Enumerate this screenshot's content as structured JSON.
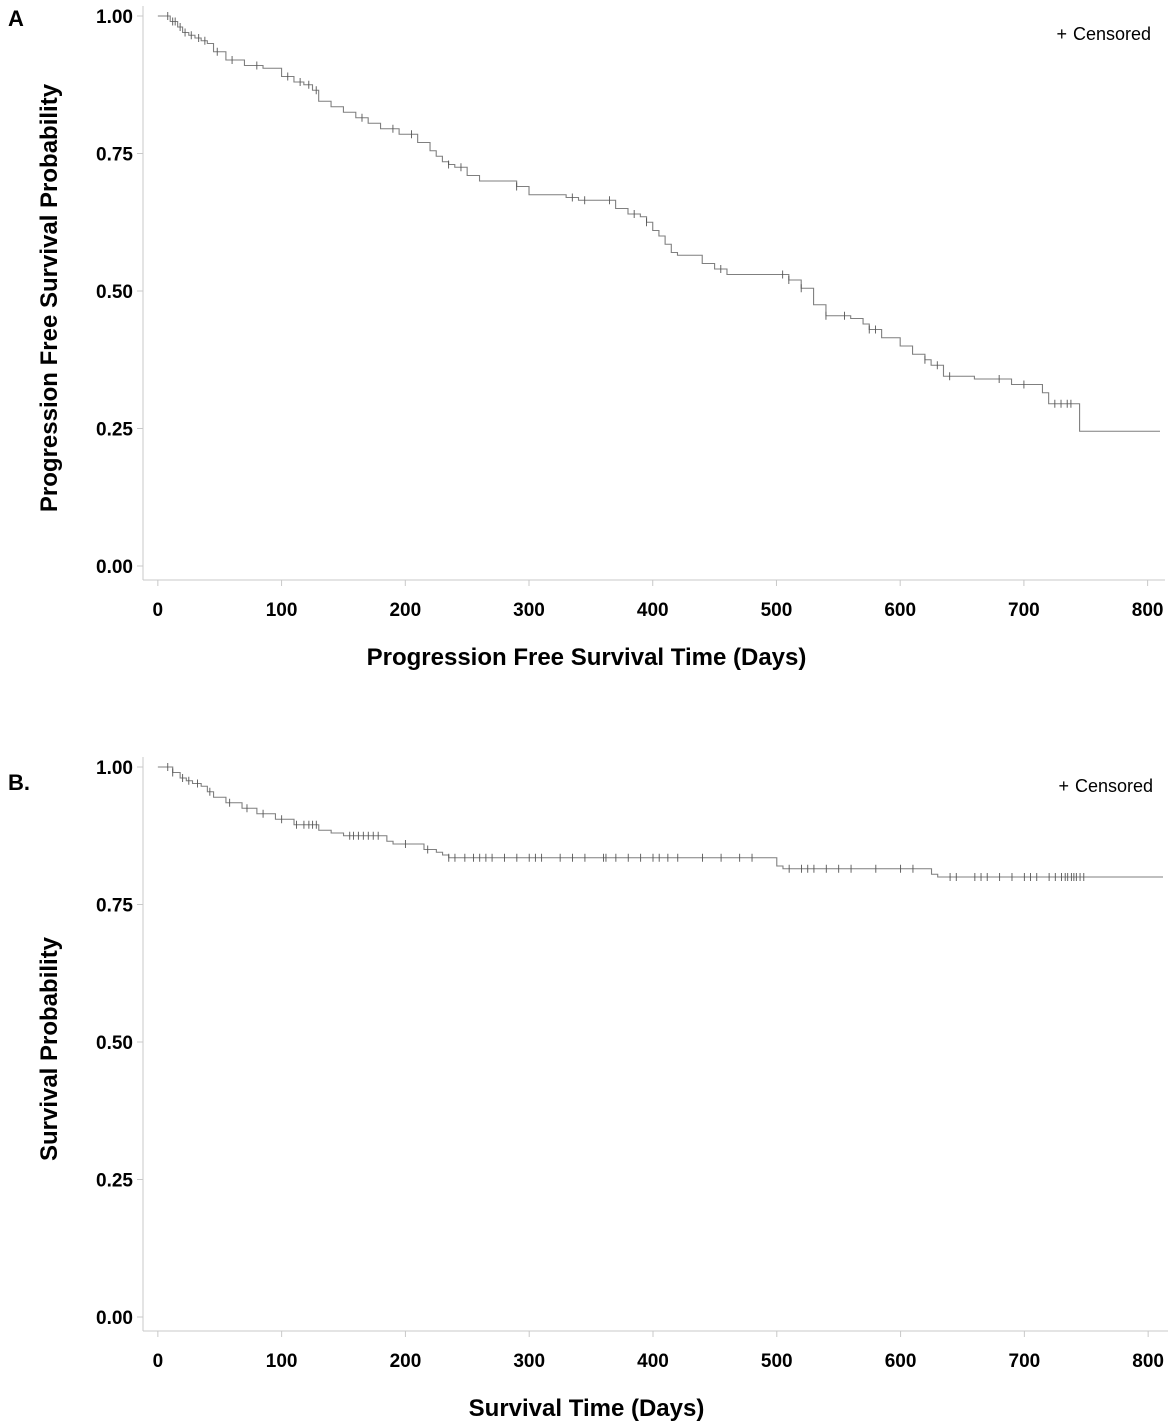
{
  "chart_data": [
    {
      "type": "line",
      "panel_label": "A",
      "xlabel": "Progression Free Survival Time (Days)",
      "ylabel": "Progression Free Survival Probability",
      "legend": "+ Censored",
      "legend_symbol": "+",
      "legend_text": "Censored",
      "legend_position": "top-right",
      "xlim": [
        -12,
        810
      ],
      "ylim": [
        0,
        1
      ],
      "x_ticks": [
        "0",
        "100",
        "200",
        "300",
        "400",
        "500",
        "600",
        "700",
        "800"
      ],
      "y_ticks": [
        "0.00",
        "0.25",
        "0.50",
        "0.75",
        "1.00"
      ],
      "grid": false,
      "line_color": "#7f7f7f",
      "step_x": [
        0,
        10,
        16,
        20,
        25,
        30,
        35,
        40,
        45,
        55,
        70,
        85,
        100,
        110,
        118,
        125,
        130,
        140,
        150,
        160,
        170,
        180,
        195,
        210,
        220,
        225,
        230,
        235,
        240,
        250,
        260,
        290,
        300,
        330,
        340,
        370,
        380,
        390,
        395,
        400,
        405,
        410,
        415,
        420,
        440,
        450,
        460,
        510,
        520,
        530,
        540,
        560,
        570,
        575,
        585,
        600,
        610,
        620,
        625,
        635,
        660,
        690,
        715,
        720,
        745,
        810
      ],
      "step_y": [
        1.0,
        0.99,
        0.98,
        0.97,
        0.965,
        0.96,
        0.955,
        0.95,
        0.935,
        0.92,
        0.91,
        0.905,
        0.89,
        0.88,
        0.875,
        0.865,
        0.845,
        0.835,
        0.825,
        0.815,
        0.805,
        0.795,
        0.785,
        0.77,
        0.755,
        0.745,
        0.735,
        0.73,
        0.725,
        0.71,
        0.7,
        0.69,
        0.675,
        0.67,
        0.665,
        0.65,
        0.64,
        0.635,
        0.625,
        0.61,
        0.6,
        0.585,
        0.57,
        0.565,
        0.55,
        0.54,
        0.53,
        0.52,
        0.505,
        0.475,
        0.455,
        0.45,
        0.44,
        0.43,
        0.415,
        0.4,
        0.385,
        0.375,
        0.365,
        0.345,
        0.34,
        0.33,
        0.315,
        0.295,
        0.245,
        0.245
      ],
      "censored_x": [
        8,
        12,
        14,
        18,
        22,
        27,
        33,
        38,
        48,
        60,
        80,
        105,
        115,
        122,
        128,
        165,
        190,
        205,
        235,
        245,
        290,
        335,
        345,
        365,
        385,
        395,
        455,
        505,
        510,
        520,
        540,
        555,
        575,
        580,
        620,
        630,
        640,
        680,
        700,
        725,
        730,
        735,
        738
      ]
    },
    {
      "type": "line",
      "panel_label": "B.",
      "xlabel": "Survival Time (Days)",
      "ylabel": "Survival Probability",
      "legend": "+ Censored",
      "legend_symbol": "+",
      "legend_text": "Censored",
      "legend_position": "top-right",
      "xlim": [
        -12,
        812
      ],
      "ylim": [
        0,
        1
      ],
      "x_ticks": [
        "0",
        "100",
        "200",
        "300",
        "400",
        "500",
        "600",
        "700",
        "800"
      ],
      "y_ticks": [
        "0.00",
        "0.25",
        "0.50",
        "0.75",
        "1.00"
      ],
      "grid": false,
      "line_color": "#7f7f7f",
      "step_x": [
        0,
        12,
        18,
        23,
        28,
        35,
        40,
        45,
        55,
        68,
        80,
        95,
        110,
        130,
        140,
        150,
        185,
        190,
        215,
        225,
        230,
        235,
        500,
        505,
        625,
        630,
        812
      ],
      "step_y": [
        1.0,
        0.99,
        0.98,
        0.975,
        0.97,
        0.965,
        0.955,
        0.945,
        0.935,
        0.925,
        0.915,
        0.905,
        0.895,
        0.885,
        0.88,
        0.875,
        0.865,
        0.86,
        0.85,
        0.845,
        0.84,
        0.835,
        0.82,
        0.815,
        0.805,
        0.8,
        0.8
      ],
      "censored_x": [
        8,
        12,
        20,
        25,
        32,
        42,
        58,
        72,
        85,
        100,
        112,
        118,
        122,
        125,
        128,
        155,
        158,
        162,
        166,
        170,
        174,
        178,
        200,
        218,
        235,
        240,
        248,
        255,
        260,
        265,
        270,
        280,
        290,
        300,
        305,
        310,
        325,
        335,
        345,
        360,
        362,
        370,
        380,
        390,
        400,
        405,
        412,
        420,
        440,
        455,
        470,
        480,
        510,
        520,
        525,
        530,
        540,
        550,
        560,
        580,
        600,
        610,
        640,
        645,
        660,
        665,
        670,
        680,
        690,
        700,
        705,
        710,
        720,
        725,
        730,
        733,
        735,
        738,
        740,
        742,
        745,
        748
      ]
    }
  ]
}
